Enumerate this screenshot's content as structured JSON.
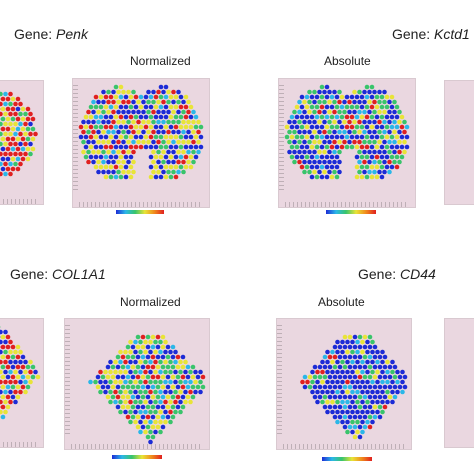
{
  "figure": {
    "top_left": {
      "gene_prefix": "Gene: ",
      "gene_name": "Penk",
      "panel_label": "Normalized"
    },
    "top_right": {
      "gene_prefix": "Gene: ",
      "gene_name": "Kctd1",
      "panel_label": "Absolute"
    },
    "bottom_left": {
      "gene_prefix": "Gene: ",
      "gene_name": "COL1A1",
      "panel_label": "Normalized"
    },
    "bottom_right": {
      "gene_prefix": "Gene: ",
      "gene_name": "CD44",
      "panel_label": "Absolute"
    }
  },
  "colors": {
    "background": "#ead7e0",
    "low": "#1c2bd6",
    "mid_low": "#2bb7e8",
    "mid": "#39c46b",
    "mid_high": "#e8e437",
    "high": "#e02020"
  }
}
